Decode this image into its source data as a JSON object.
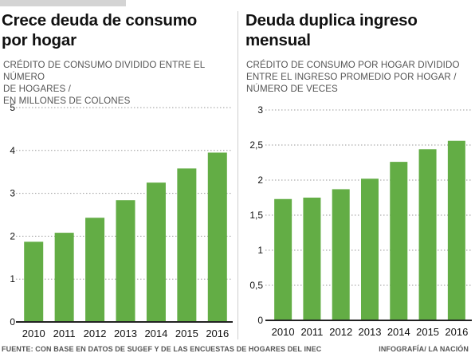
{
  "colors": {
    "bar": "#63ad45",
    "grid": "#9a9a9a",
    "baseline": "#222222"
  },
  "footer": {
    "source": "FUENTE: CON BASE EN DATOS DE SUGEF Y DE LAS ENCUESTAS DE HOGARES DEL INEC",
    "credit": "INFOGRAFÍA/ LA NACIÓN"
  },
  "chart_data": [
    {
      "type": "bar",
      "title_lines": [
        "Crece deuda de consumo",
        "por hogar"
      ],
      "subtitle_lines": [
        "CRÉDITO DE CONSUMO DIVIDIDO ENTRE EL NÚMERO",
        "DE HOGARES  /",
        "EN MILLONES DE COLONES"
      ],
      "categories": [
        "2010",
        "2011",
        "2012",
        "2013",
        "2014",
        "2015",
        "2016"
      ],
      "values": [
        1.87,
        2.08,
        2.43,
        2.84,
        3.25,
        3.58,
        3.95
      ],
      "ylim": [
        0,
        5
      ],
      "yticks": [
        0,
        1,
        2,
        3,
        4,
        5
      ],
      "ytick_labels": [
        "0",
        "1",
        "2",
        "3",
        "4",
        "5"
      ],
      "grid": true
    },
    {
      "type": "bar",
      "title_lines": [
        "Deuda duplica ingreso",
        "mensual"
      ],
      "subtitle_lines": [
        "CRÉDITO DE CONSUMO POR HOGAR DIVIDIDO",
        "ENTRE EL INGRESO PROMEDIO POR HOGAR  /",
        "NÚMERO DE VECES"
      ],
      "categories": [
        "2010",
        "2011",
        "2012",
        "2013",
        "2014",
        "2015",
        "2016"
      ],
      "values": [
        1.73,
        1.75,
        1.87,
        2.02,
        2.26,
        2.44,
        2.56
      ],
      "ylim": [
        0,
        3
      ],
      "yticks": [
        0,
        0.5,
        1,
        1.5,
        2,
        2.5,
        3
      ],
      "ytick_labels": [
        "0",
        "0,5",
        "1",
        "1,5",
        "2",
        "2,5",
        "3"
      ],
      "grid": true
    }
  ]
}
